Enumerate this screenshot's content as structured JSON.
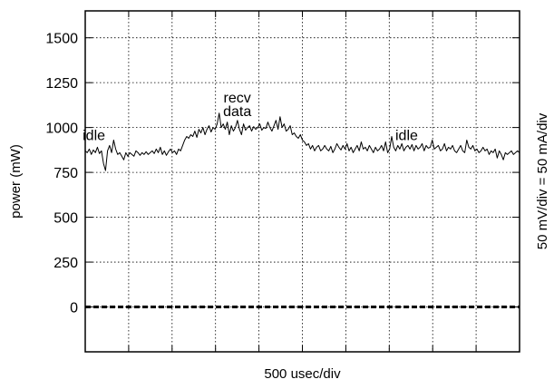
{
  "chart_data": {
    "type": "line",
    "xlabel": "500 usec/div",
    "ylabel": "power (mW)",
    "y2label": "50 mV/div = 50 mA/div",
    "ylim": [
      -250,
      1650
    ],
    "yticks": [
      0,
      250,
      500,
      750,
      1000,
      1250,
      1500
    ],
    "x_divisions": 10,
    "grid": true,
    "grid_style": "dotted",
    "colors": {
      "trace": "#000000",
      "grid": "#000000",
      "baseline": "#000000"
    },
    "series": [
      {
        "values": [
          870,
          860,
          880,
          850,
          875,
          860,
          890,
          855,
          870,
          800,
          760,
          870,
          900,
          860,
          930,
          880,
          850,
          860,
          840,
          820,
          860,
          840,
          860,
          850,
          840,
          870,
          860,
          845,
          860,
          850,
          865,
          850,
          860,
          870,
          855,
          880,
          860,
          890,
          850,
          870,
          845,
          865,
          880,
          860,
          870,
          850,
          880,
          870,
          900,
          930,
          950,
          940,
          960,
          950,
          980,
          945,
          990,
          970,
          1000,
          960,
          990,
          1010,
          975,
          1000,
          990,
          1020,
          1080,
          1000,
          1020,
          990,
          1030,
          960,
          1010,
          980,
          1000,
          1040,
          990,
          960,
          1020,
          985,
          1000,
          1010,
          980,
          1005,
          990,
          1000,
          1020,
          985,
          1000,
          995,
          1030,
          1000,
          980,
          1010,
          1040,
          990,
          1060,
          1000,
          1020,
          980,
          990,
          1010,
          960,
          970,
          950,
          940,
          960,
          930,
          920,
          900,
          910,
          880,
          900,
          870,
          890,
          900,
          870,
          880,
          900,
          880,
          870,
          895,
          860,
          880,
          910,
          890,
          875,
          900,
          880,
          910,
          870,
          890,
          860,
          880,
          900,
          870,
          920,
          880,
          890,
          870,
          900,
          880,
          860,
          890,
          870,
          880,
          900,
          870,
          920,
          860,
          880,
          950,
          890,
          870,
          900,
          880,
          910,
          870,
          890,
          900,
          880,
          905,
          870,
          900,
          880,
          890,
          910,
          870,
          900,
          885,
          890,
          930,
          880,
          890,
          900,
          870,
          880,
          910,
          870,
          890,
          880,
          900,
          870,
          860,
          880,
          900,
          870,
          860,
          930,
          890,
          880,
          900,
          870,
          880,
          860,
          870,
          890,
          870,
          880,
          850,
          870,
          860,
          880,
          830,
          870,
          850,
          820,
          860,
          850,
          860,
          870,
          850,
          860,
          870,
          860
        ]
      },
      {
        "style": "dashed-baseline",
        "values": [
          0,
          0
        ]
      }
    ],
    "annotations": [
      {
        "text": "idle",
        "x_div": 0.2,
        "y": 930
      },
      {
        "text": "recv",
        "x_div": 3.5,
        "y": 1140
      },
      {
        "text": "data",
        "x_div": 3.5,
        "y": 1065
      },
      {
        "text": "idle",
        "x_div": 7.4,
        "y": 930
      }
    ]
  }
}
